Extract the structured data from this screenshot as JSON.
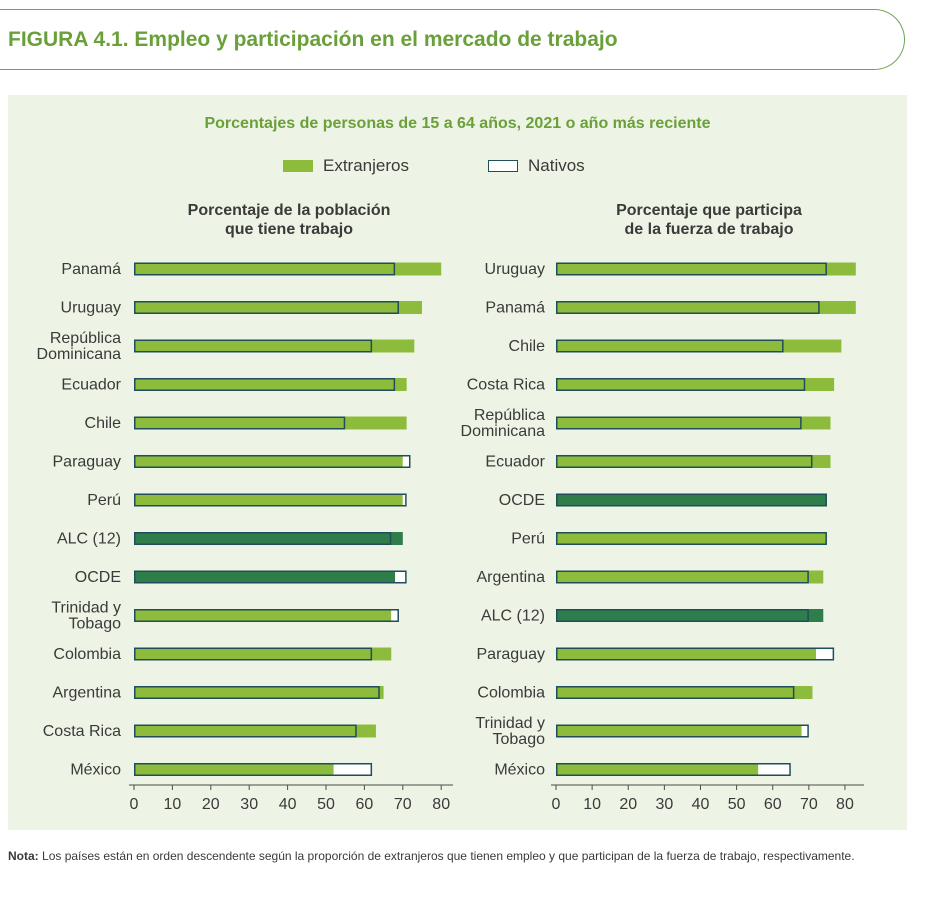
{
  "figure_title": "FIGURA 4.1. Empleo y participación en el mercado de trabajo",
  "subtitle": "Porcentajes de personas de 15 a 64 años, 2021 o año más reciente",
  "legend": {
    "extranjeros": "Extranjeros",
    "nativos": "Nativos"
  },
  "colors": {
    "foreign": "#8dbb3c",
    "foreign_highlight": "#2e7d4a",
    "native_border": "#1f4e5a",
    "title_green": "#6aa03a"
  },
  "note": {
    "label": "Nota:",
    "text": "Los países están en orden descendente según la proporción de extranjeros que tienen empleo y que participan de la fuerza de trabajo, respectivamente."
  },
  "chart_data": [
    {
      "type": "bar",
      "orientation": "horizontal",
      "title": "Porcentaje de la población\nque tiene trabajo",
      "xlim": [
        0,
        80
      ],
      "xticks": [
        0,
        10,
        20,
        30,
        40,
        50,
        60,
        70,
        80
      ],
      "categories": [
        "Panamá",
        "Uruguay",
        "República\nDominicana",
        "Ecuador",
        "Chile",
        "Paraguay",
        "Perú",
        "ALC (12)",
        "OCDE",
        "Trinidad y\nTobago",
        "Colombia",
        "Argentina",
        "Costa Rica",
        "México"
      ],
      "highlight": [
        "ALC (12)",
        "OCDE"
      ],
      "series": [
        {
          "name": "Extranjeros",
          "values": [
            80,
            75,
            73,
            71,
            71,
            70,
            70,
            70,
            68,
            67,
            67,
            65,
            63,
            52
          ]
        },
        {
          "name": "Nativos",
          "values": [
            68,
            69,
            62,
            68,
            55,
            72,
            71,
            67,
            71,
            69,
            62,
            64,
            58,
            62
          ]
        }
      ]
    },
    {
      "type": "bar",
      "orientation": "horizontal",
      "title": "Porcentaje que participa\nde la fuerza de trabajo",
      "xlim": [
        0,
        85
      ],
      "xticks": [
        0,
        10,
        20,
        30,
        40,
        50,
        60,
        70,
        80
      ],
      "categories": [
        "Uruguay",
        "Panamá",
        "Chile",
        "Costa Rica",
        "República\nDominicana",
        "Ecuador",
        "OCDE",
        "Perú",
        "Argentina",
        "ALC (12)",
        "Paraguay",
        "Colombia",
        "Trinidad y\nTobago",
        "México"
      ],
      "highlight": [
        "OCDE",
        "ALC (12)"
      ],
      "series": [
        {
          "name": "Extranjeros",
          "values": [
            83,
            83,
            79,
            77,
            76,
            76,
            75,
            75,
            74,
            74,
            72,
            71,
            68,
            56
          ]
        },
        {
          "name": "Nativos",
          "values": [
            75,
            73,
            63,
            69,
            68,
            71,
            75,
            75,
            70,
            70,
            77,
            66,
            70,
            65
          ]
        }
      ]
    }
  ]
}
